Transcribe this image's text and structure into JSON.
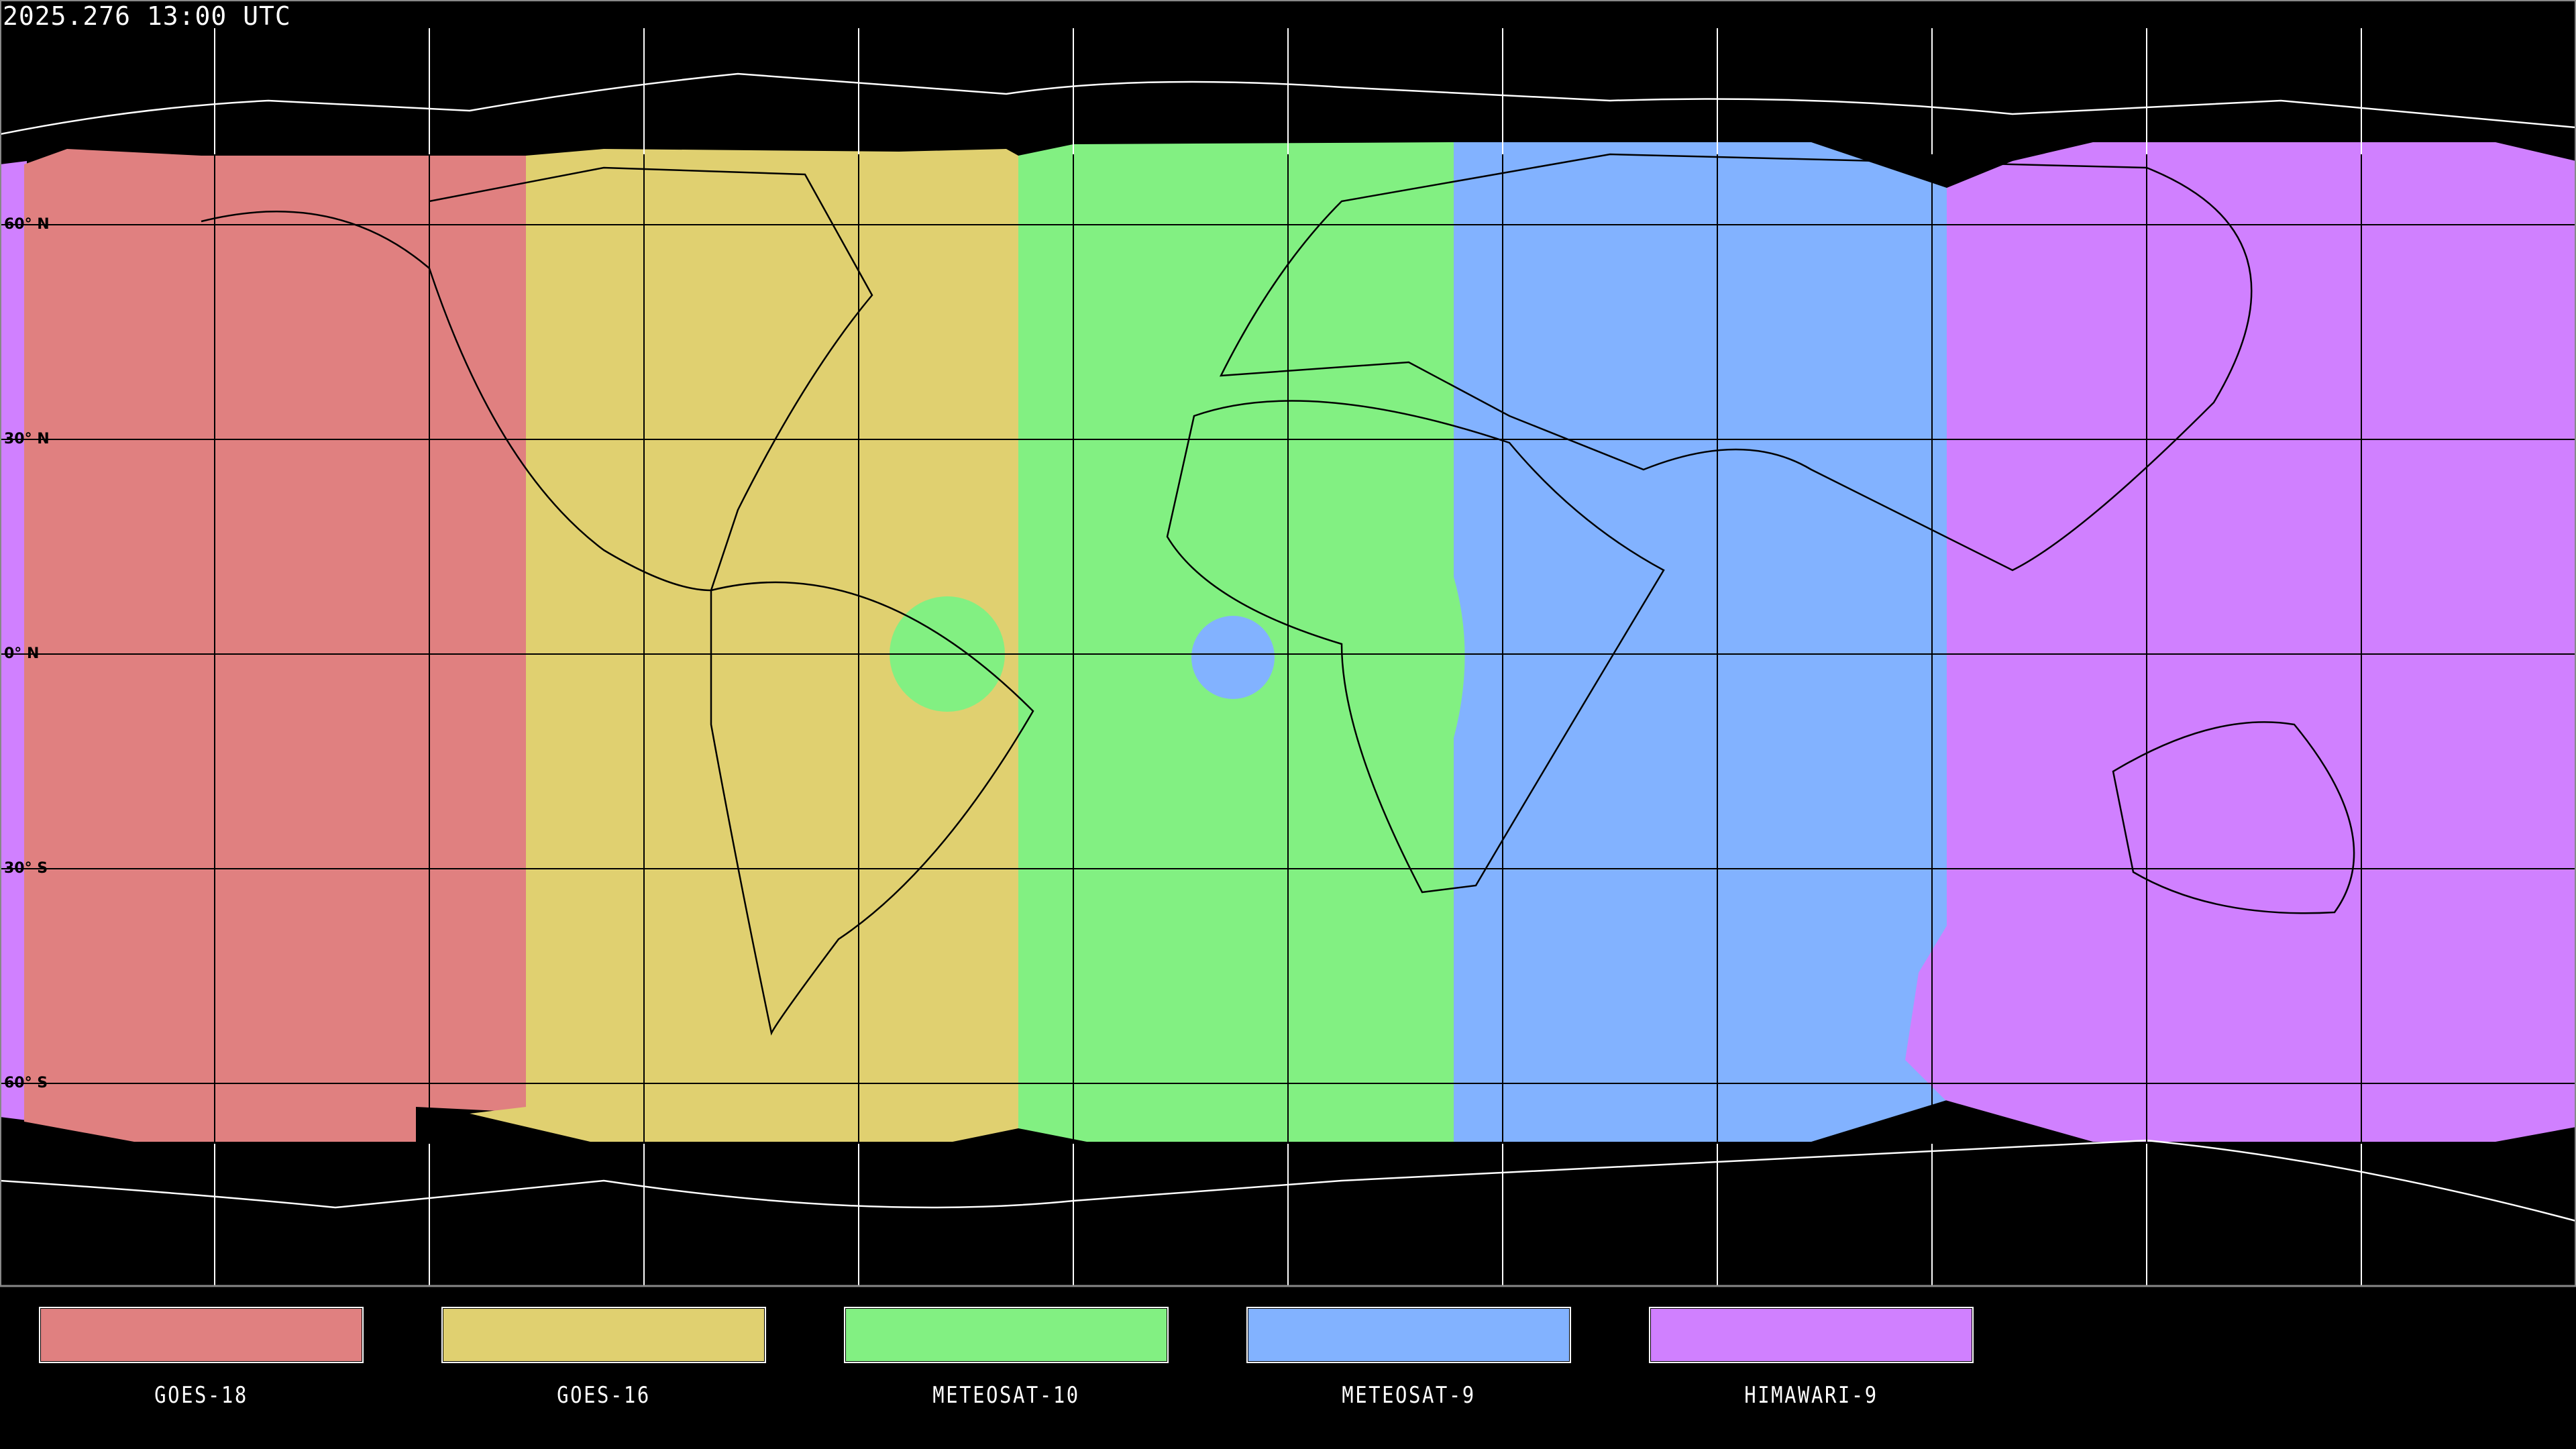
{
  "title": "2025.276 13:00 UTC",
  "latitude_labels": [
    "60° N",
    "30° N",
    "0° N",
    "30° S",
    "60° S"
  ],
  "legend": [
    {
      "name": "GOES-18",
      "color": "#e08080"
    },
    {
      "name": "GOES-16",
      "color": "#e0d070"
    },
    {
      "name": "METEOSAT-10",
      "color": "#82f082"
    },
    {
      "name": "METEOSAT-9",
      "color": "#82b2ff"
    },
    {
      "name": "HIMAWARI-9",
      "color": "#d080ff"
    }
  ],
  "map": {
    "projection": "equirectangular",
    "grid_spacing_degrees": 30,
    "background": "#000000",
    "coastline_color_outside_coverage": "#ffffff",
    "coastline_color_inside_coverage": "#000000"
  }
}
